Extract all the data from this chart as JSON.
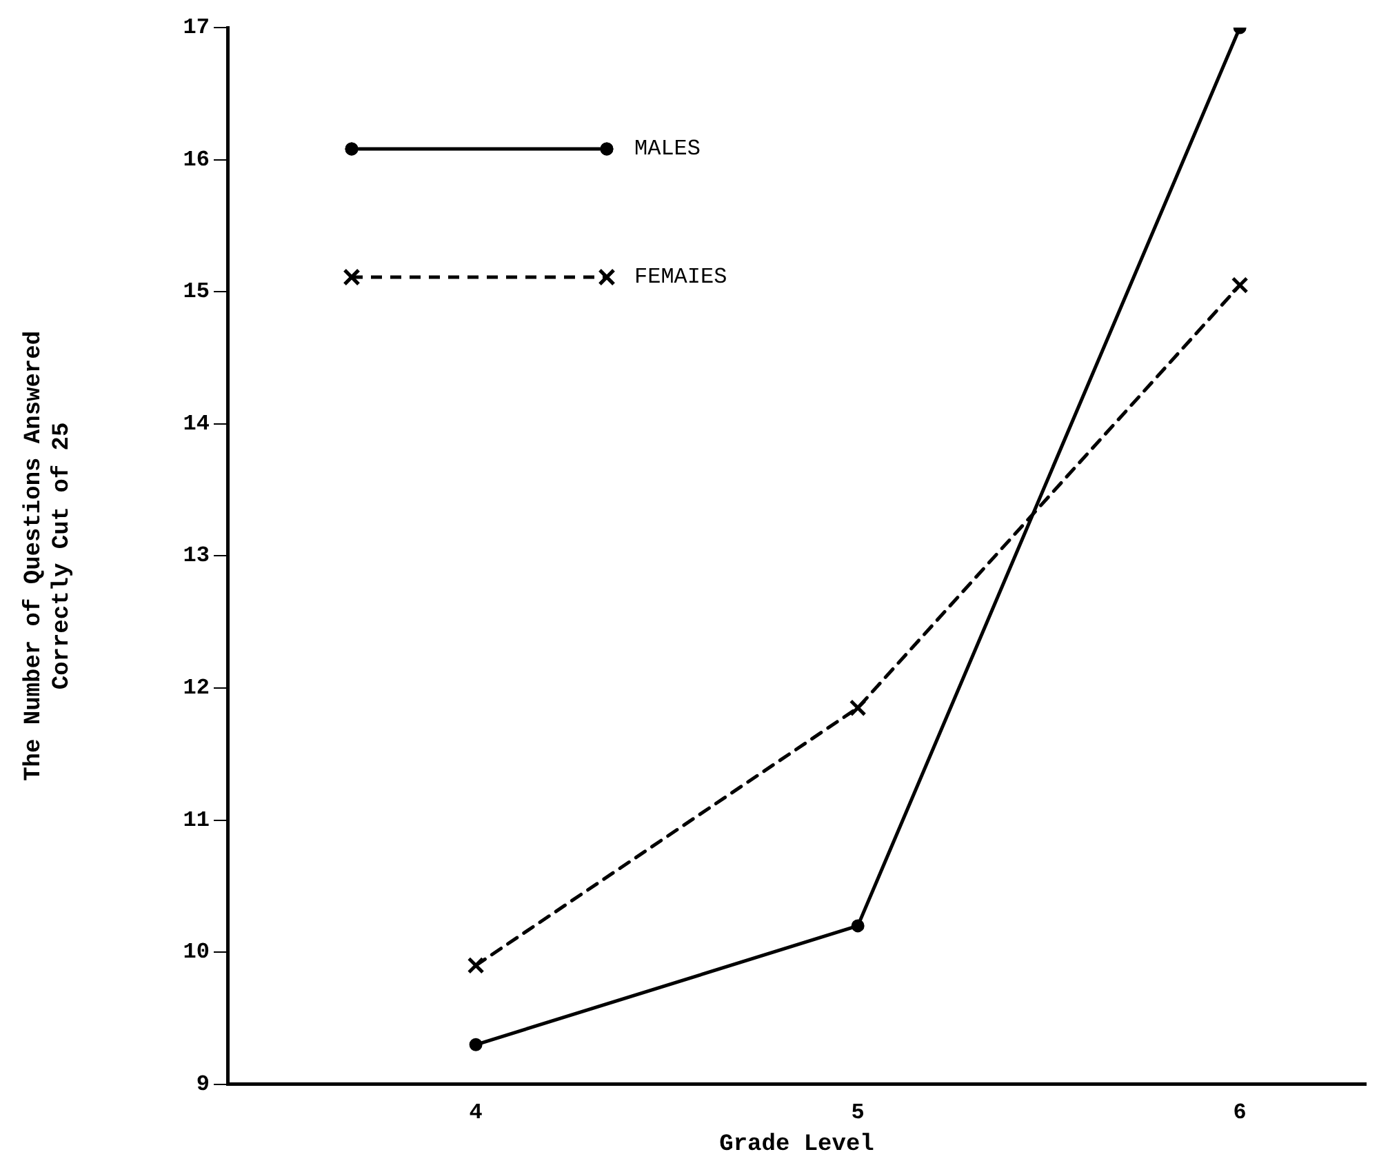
{
  "chart_data": {
    "type": "line",
    "xlabel": "Grade Level",
    "ylabel": "The Number of Questions Answered\nCorrectly Cut of 25",
    "x": [
      4,
      5,
      6
    ],
    "series": [
      {
        "name": "MALES",
        "color": "#000000",
        "values": [
          9.3,
          10.2,
          17
        ],
        "marker": "circle",
        "line_style": "solid"
      },
      {
        "name": "FEMAIES",
        "color": "#000000",
        "values": [
          9.9,
          11.85,
          15.05
        ],
        "marker": "cross",
        "line_style": "dashed"
      }
    ],
    "xlim": [
      3.35,
      6.33
    ],
    "xticks": [
      4,
      5,
      6
    ],
    "ylim": [
      9,
      17
    ],
    "yticks": [
      9,
      10,
      11,
      12,
      13,
      14,
      15,
      16,
      17
    ],
    "grid": false,
    "legend": "top left"
  }
}
